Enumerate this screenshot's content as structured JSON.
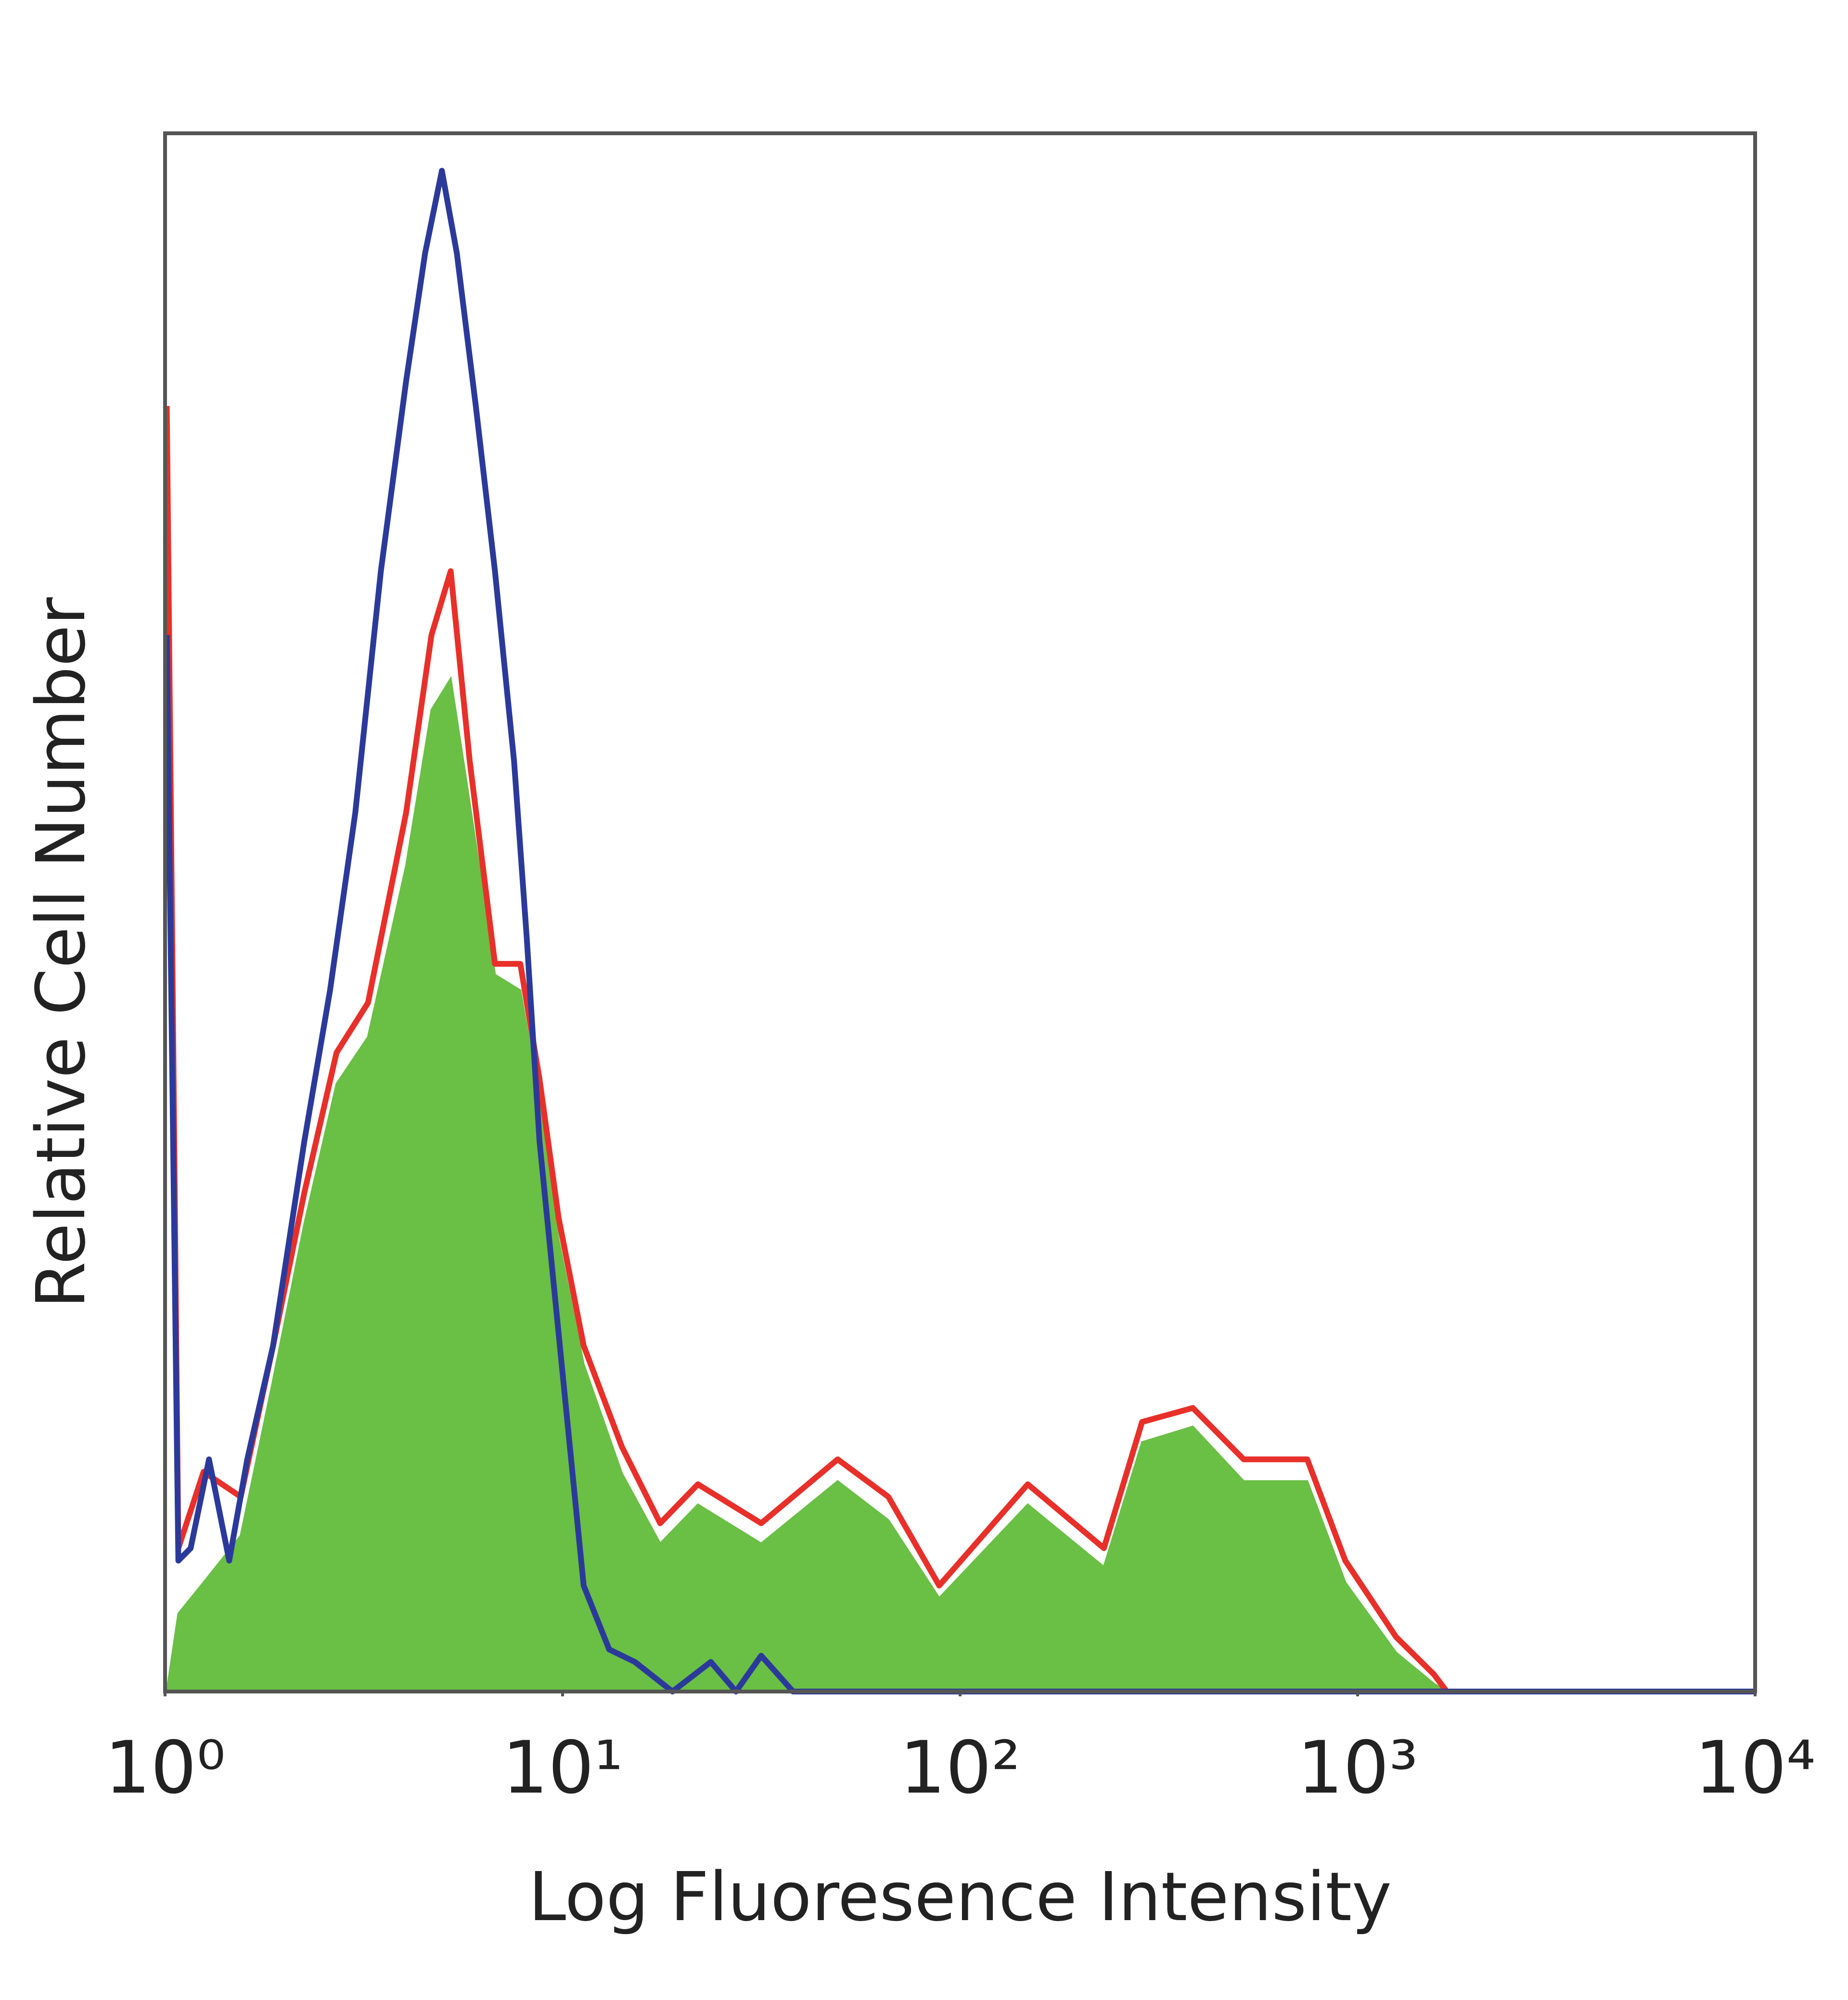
{
  "chart_data": {
    "type": "line",
    "xlabel": "Log Fluoresence Intensity",
    "ylabel": "Relative Cell Number",
    "xscale": "log",
    "xlim": [
      1,
      10000
    ],
    "xticks": [
      {
        "value": 1,
        "label": "10⁰"
      },
      {
        "value": 10,
        "label": "10¹"
      },
      {
        "value": 100,
        "label": "10²"
      },
      {
        "value": 1000,
        "label": "10³"
      },
      {
        "value": 10000,
        "label": "10⁴"
      }
    ],
    "ylim": [
      0,
      100
    ],
    "grid": false,
    "series": [
      {
        "color": "#6abf45",
        "fill": true,
        "x": [
          1.01,
          1.08,
          1.25,
          1.55,
          1.87,
          2.24,
          2.7,
          3.24,
          4.04,
          4.68,
          5.23,
          5.84,
          6.76,
          7.83,
          8.75,
          9.77,
          11.3,
          14.1,
          17.6,
          21.9,
          31.6,
          49.2,
          66,
          88.6,
          148,
          230,
          287,
          385,
          517,
          747,
          931,
          1250,
          1556,
          1676,
          10000
        ],
        "values": [
          0,
          5,
          7,
          10,
          20,
          30,
          39,
          42,
          53,
          63,
          65,
          57,
          46,
          45,
          38,
          29,
          21,
          14,
          9.5,
          12,
          9.5,
          13.5,
          11,
          6,
          12,
          8,
          16,
          17,
          13.5,
          13.5,
          7,
          2.5,
          0.5,
          0,
          0
        ]
      },
      {
        "color": "#e8302a",
        "fill": false,
        "x": [
          1.01,
          1.08,
          1.25,
          1.55,
          1.87,
          2.24,
          2.7,
          3.24,
          4.04,
          4.68,
          5.23,
          5.84,
          6.76,
          7.83,
          8.75,
          9.77,
          11.3,
          14.1,
          17.6,
          21.9,
          31.6,
          49.2,
          66,
          88.6,
          148,
          230,
          287,
          385,
          517,
          747,
          931,
          1250,
          1556,
          1676,
          10000
        ],
        "values": [
          82.5,
          9.2,
          14.1,
          12.5,
          22.2,
          32,
          41,
          44.2,
          56.4,
          67.8,
          71.9,
          59.7,
          46.7,
          46.7,
          39.3,
          30.4,
          22.2,
          15.7,
          10.8,
          13.3,
          10.8,
          14.9,
          12.5,
          6.8,
          13.3,
          9.2,
          17.3,
          18.2,
          14.9,
          14.9,
          8.4,
          3.5,
          1.1,
          0,
          0
        ]
      },
      {
        "color": "#2b3a9a",
        "fill": false,
        "x": [
          1.01,
          1.08,
          1.16,
          1.29,
          1.45,
          1.61,
          1.87,
          2.24,
          2.6,
          3.01,
          3.49,
          4.04,
          4.51,
          4.97,
          5.42,
          6.05,
          6.76,
          7.55,
          8.13,
          8.75,
          9.77,
          11.3,
          13.1,
          15.2,
          18.9,
          23.6,
          27.3,
          31.6,
          38,
          10000
        ],
        "values": [
          67.8,
          8.4,
          9.2,
          14.9,
          8.4,
          14.9,
          22.2,
          35.3,
          45,
          56.4,
          71.9,
          84.1,
          92.3,
          97.6,
          92.3,
          82.5,
          71.9,
          59.7,
          48.3,
          35.3,
          23,
          6.8,
          2.7,
          1.9,
          0,
          1.9,
          0,
          2.3,
          0,
          0
        ]
      }
    ]
  }
}
